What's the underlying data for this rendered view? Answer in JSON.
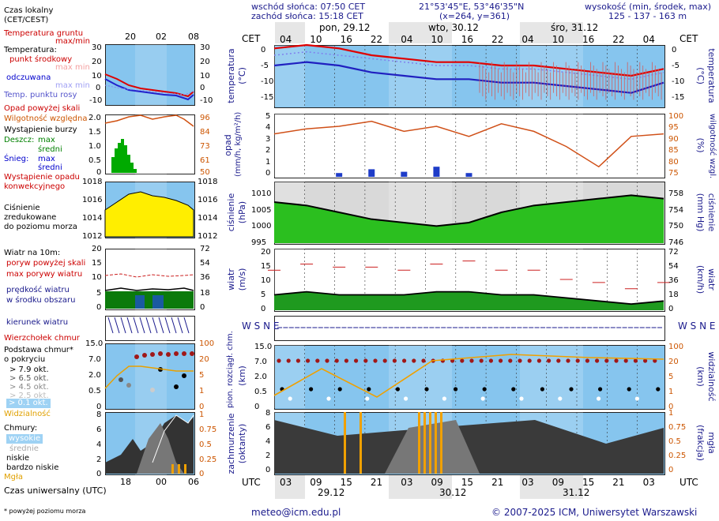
{
  "header": {
    "sunrise": "wschód słońca: 07:50 CET",
    "sunset": "zachód słońca: 15:18 CET",
    "coords": "21°53'45\"E, 53°46'35\"N",
    "grid": "(x=264,  y=361)",
    "altitude_title": "wysokość (min, środek, max)",
    "altitude_values": "125 - 137 - 163 m"
  },
  "left_legend": {
    "local_time": "Czas lokalny",
    "local_time_zone": "(CET/CEST)",
    "soil_temp": "Temperatura gruntu",
    "soil_maxmin": "max/min",
    "temperature": "Temperatura:",
    "midpoint": "punkt środkowy",
    "max_min": "max min",
    "feels_like": "odczuwana",
    "max_min2": "max min",
    "dew_point": "Temp. punktu rosy",
    "precip_above": "Opad powyżej skali",
    "humidity": "Wilgotność względna",
    "storm": "Wystąpienie burzy",
    "rain": "Deszcz:",
    "rain_max": "max",
    "rain_mid": "średni",
    "snow": "Śnieg:",
    "snow_max": "max",
    "snow_mid": "średni",
    "conv_precip": "Wystąpienie opadu",
    "conv_precip2": "konwekcyjnego",
    "pressure1": "Ciśnienie",
    "pressure2": "zredukowane",
    "pressure3": "do poziomu morza",
    "wind_at": "Wiatr na 10m:",
    "gust_above": "poryw powyżej skali",
    "gust_max": "max porywy wiatru",
    "wind_speed": "prędkość wiatru",
    "wind_area": "w środku obszaru",
    "wind_dir": "kierunek wiatru",
    "vane": "Wierzchołek chmur",
    "cloud_base1": "Podstawa chmur*",
    "cloud_base2": "o pokryciu",
    "okt79": "> 7.9 okt.",
    "okt65": "> 6.5 okt.",
    "okt45": "> 4.5 okt.",
    "okt25": "> 2.5 okt.",
    "okt01": "> 0.1 okt.",
    "visibility": "Widzialność",
    "clouds": "Chmury:",
    "high": "wysokie",
    "mid": "średnie",
    "low": "niskie",
    "very_low": "bardzo niskie",
    "fog": "Mgła",
    "utc_time": "Czas uniwersalny (UTC)",
    "footnote": "* powyżej poziomu morza"
  },
  "small_axis": {
    "top_ticks": [
      "20",
      "02",
      "08"
    ],
    "bottom_ticks": [
      "18",
      "00",
      "06"
    ],
    "temp_left": [
      "30",
      "20",
      "10",
      "0",
      "-10"
    ],
    "temp_right": [
      "30",
      "20",
      "10",
      "0",
      "-10"
    ],
    "precip_left": [
      "2.0",
      "1.5",
      "1.0",
      "0.5",
      "0"
    ],
    "precip_right": [
      "96",
      "84",
      "73",
      "61",
      "50"
    ],
    "press_left": [
      "1018",
      "1016",
      "1014",
      "1012"
    ],
    "press_right": [
      "1018",
      "1016",
      "1014",
      "1012"
    ],
    "wind_left": [
      "20",
      "15",
      "10",
      "5",
      "0"
    ],
    "wind_right": [
      "72",
      "54",
      "36",
      "18",
      "0"
    ],
    "cloud_left": [
      "15.0",
      "7.0",
      "2.0",
      "0.5",
      "0"
    ],
    "cloud_right": [
      "100",
      "20",
      "5",
      "1",
      "0"
    ],
    "cov_left": [
      "8",
      "6",
      "4",
      "2",
      "0"
    ],
    "cov_right": [
      "1",
      "0.75",
      "0.5",
      "0.25",
      "0"
    ]
  },
  "main": {
    "cet": "CET",
    "utc": "UTC",
    "day_labels_top": [
      "pon, 29.12",
      "wto, 30.12",
      "śro, 31.12"
    ],
    "hours_top": [
      "04",
      "10",
      "16",
      "22",
      "04",
      "10",
      "16",
      "22",
      "04",
      "10",
      "16",
      "22",
      "04"
    ],
    "hours_bottom": [
      "03",
      "09",
      "15",
      "21",
      "03",
      "09",
      "15",
      "21",
      "03",
      "09",
      "15",
      "21",
      "03"
    ],
    "day_labels_bottom": [
      "29.12",
      "30.12",
      "31.12"
    ],
    "temp_axis_label": "temperatura",
    "temp_axis_unit": "(°C)",
    "temp_ticks": [
      "0",
      "-5",
      "-10",
      "-15"
    ],
    "precip_axis_label": "opad",
    "precip_axis_unit": "(mm/h, kg/m²/h)",
    "precip_ticks": [
      "5",
      "4",
      "3",
      "2",
      "1",
      "0"
    ],
    "hum_axis_label": "wilgotność wzgl.",
    "hum_axis_unit": "(%)",
    "hum_ticks": [
      "100",
      "95",
      "90",
      "85",
      "80",
      "75"
    ],
    "press_axis_label": "ciśnienie",
    "press_axis_unit": "(hPa)",
    "press_ticks": [
      "1010",
      "1005",
      "1000",
      "995"
    ],
    "press_r_label": "ciśnienie",
    "press_r_unit": "(mm Hg)",
    "press_r_ticks": [
      "758",
      "754",
      "750",
      "746"
    ],
    "wind_axis_label": "wiatr",
    "wind_axis_unit": "(m/s)",
    "wind_ticks": [
      "20",
      "15",
      "10",
      "5",
      "0"
    ],
    "wind_r_label": "wiatr",
    "wind_r_unit": "(km/h)",
    "wind_r_ticks": [
      "72",
      "54",
      "36",
      "18",
      "0"
    ],
    "cloud_axis_label": "pion. rozciągł. chm.",
    "cloud_axis_unit": "(km)",
    "cloud_ticks": [
      "15.0",
      "7.0",
      "2.0",
      "0.5",
      "0"
    ],
    "vis_label": "widzialność",
    "vis_unit": "(km)",
    "vis_ticks": [
      "100",
      "20",
      "5",
      "1",
      "0"
    ],
    "cov_axis_label": "zachmurzenie",
    "cov_axis_unit": "(oktanty)",
    "cov_ticks": [
      "8",
      "6",
      "4",
      "2",
      "0"
    ],
    "fog_label": "mgła",
    "fog_unit": "(frakcja)",
    "fog_ticks": [
      "1",
      "0.75",
      "0.5",
      "0.25",
      "0"
    ],
    "compass": "W S N E"
  },
  "footer": {
    "email": "meteo@icm.edu.pl",
    "copyright": "© 2007-2025 ICM, Uniwersytet Warszawski"
  },
  "chart_data": [
    {
      "type": "line",
      "title": "temperatura",
      "x": [
        "29.12 03",
        "29.12 09",
        "29.12 15",
        "29.12 21",
        "30.12 03",
        "30.12 09",
        "30.12 15",
        "30.12 21",
        "31.12 03",
        "31.12 09",
        "31.12 15",
        "31.12 21",
        "01.01 03"
      ],
      "series": [
        {
          "name": "punkt środkowy",
          "values": [
            1,
            2,
            1,
            -1,
            -2,
            -3,
            -3,
            -4,
            -4,
            -5,
            -6,
            -7,
            -5
          ]
        },
        {
          "name": "odczuwana",
          "values": [
            -4,
            -3,
            -4,
            -6,
            -7,
            -8,
            -8,
            -9,
            -9,
            -10,
            -11,
            -12,
            -9
          ]
        },
        {
          "name": "Temp. punktu rosy",
          "values": [
            -1,
            0,
            -1,
            -2,
            -3,
            -4,
            -4,
            -5,
            -5,
            -6,
            -7,
            -8,
            -6
          ]
        }
      ],
      "ylim": [
        -16,
        2
      ]
    },
    {
      "type": "bar",
      "title": "opad",
      "x": [
        "29.12 03",
        "29.12 09",
        "29.12 15",
        "29.12 21",
        "30.12 03",
        "30.12 09",
        "30.12 15",
        "30.12 21",
        "31.12 03",
        "31.12 09",
        "31.12 15",
        "31.12 21",
        "01.01 03"
      ],
      "series": [
        {
          "name": "Śnieg",
          "values": [
            0,
            0,
            0.3,
            0.6,
            0.4,
            0.8,
            0.3,
            0,
            0,
            0,
            0,
            0,
            0
          ]
        },
        {
          "name": "Wilgotność względna",
          "values": [
            92,
            94,
            95,
            97,
            93,
            95,
            91,
            96,
            93,
            87,
            79,
            91,
            92
          ]
        }
      ],
      "ylim": [
        0,
        5
      ]
    },
    {
      "type": "area",
      "title": "ciśnienie",
      "x": [
        "29.12 03",
        "29.12 09",
        "29.12 15",
        "29.12 21",
        "30.12 03",
        "30.12 09",
        "30.12 15",
        "30.12 21",
        "31.12 03",
        "31.12 09",
        "31.12 15",
        "31.12 21",
        "01.01 03"
      ],
      "values": [
        1007,
        1006,
        1004,
        1002,
        1001,
        1000,
        1001,
        1004,
        1006,
        1007,
        1008,
        1009,
        1008
      ],
      "ylim": [
        995,
        1013
      ]
    },
    {
      "type": "line",
      "title": "wiatr",
      "x": [
        "29.12 03",
        "29.12 09",
        "29.12 15",
        "29.12 21",
        "30.12 03",
        "30.12 09",
        "30.12 15",
        "30.12 21",
        "31.12 03",
        "31.12 09",
        "31.12 15",
        "31.12 21",
        "01.01 03"
      ],
      "series": [
        {
          "name": "prędkość wiatru",
          "values": [
            5,
            6,
            5,
            5,
            5,
            6,
            6,
            5,
            5,
            4,
            3,
            2,
            3
          ]
        },
        {
          "name": "max porywy wiatru",
          "values": [
            13,
            15,
            14,
            14,
            13,
            15,
            16,
            13,
            13,
            10,
            9,
            7,
            9
          ]
        }
      ],
      "ylim": [
        0,
        20
      ]
    }
  ]
}
